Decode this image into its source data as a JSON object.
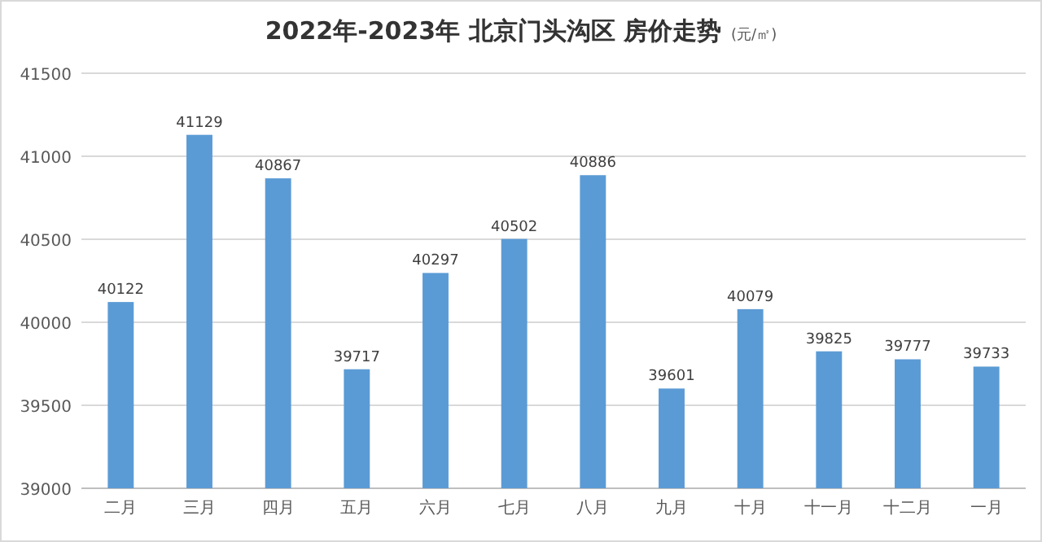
{
  "chart_data": {
    "type": "bar",
    "title": "2022年-2023年 北京门头沟区 房价走势",
    "subtitle": "(元/㎡)",
    "categories": [
      "二月",
      "三月",
      "四月",
      "五月",
      "六月",
      "七月",
      "八月",
      "九月",
      "十月",
      "十一月",
      "十二月",
      "一月"
    ],
    "values": [
      40122,
      41129,
      40867,
      39717,
      40297,
      40502,
      40886,
      39601,
      40079,
      39825,
      39777,
      39733
    ],
    "color": "#5b9bd5",
    "ylim": [
      39000,
      41500
    ],
    "yticks": [
      39000,
      39500,
      40000,
      40500,
      41000,
      41500
    ],
    "grid": "y",
    "data_labels": true
  }
}
